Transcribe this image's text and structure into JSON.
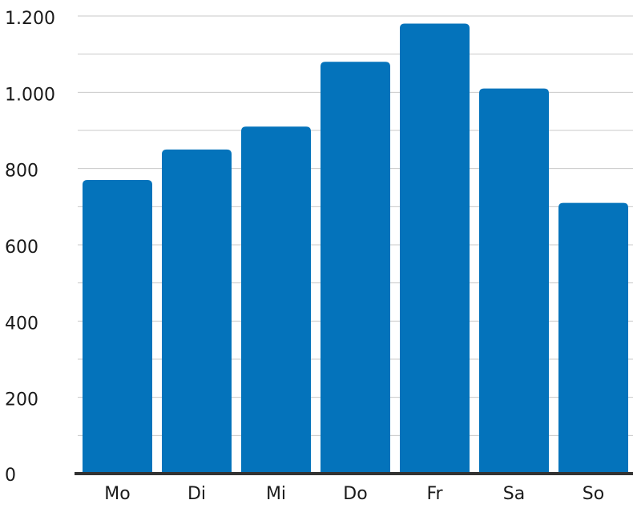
{
  "chart_data": {
    "type": "bar",
    "title": "",
    "xlabel": "",
    "ylabel": "",
    "categories": [
      "Mo",
      "Di",
      "Mi",
      "Do",
      "Fr",
      "Sa",
      "So"
    ],
    "values": [
      770,
      850,
      910,
      1080,
      1180,
      1010,
      710
    ],
    "ylim": [
      0,
      1200
    ],
    "yticks": [
      0,
      200,
      400,
      600,
      800,
      1000,
      1200
    ],
    "ytick_labels": [
      "0",
      "200",
      "400",
      "600",
      "800",
      "1.000",
      "1.200"
    ],
    "grid": true,
    "legend": "none",
    "colors": {
      "bar": "#0473bb",
      "grid": "#c8c8c8",
      "axis": "#333333",
      "text": "#1a1a1a"
    }
  }
}
